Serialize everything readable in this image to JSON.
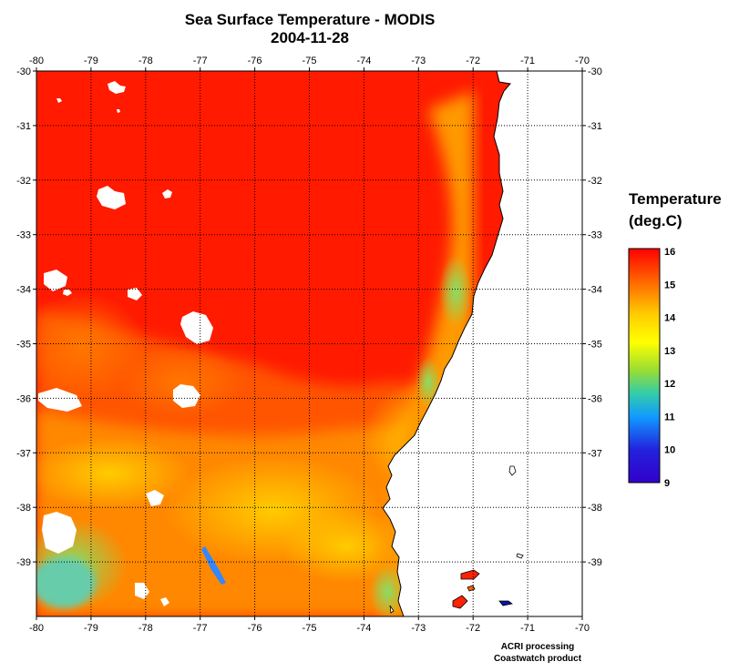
{
  "title": "Sea Surface Temperature - MODIS",
  "date": "2004-11-28",
  "credits": [
    "ACRI processing",
    "Coastwatch product"
  ],
  "legend": {
    "title_line1": "Temperature",
    "title_line2": "(deg.C)",
    "min": 9,
    "max": 16,
    "ticks": [
      "16",
      "15",
      "14",
      "13",
      "12",
      "11",
      "10",
      "9"
    ],
    "colors": [
      "#ff0000",
      "#ff6600",
      "#ffcc00",
      "#ffff00",
      "#99dd33",
      "#33ccaa",
      "#1199ff",
      "#2222dd",
      "#3300cc"
    ]
  },
  "map": {
    "lon_ticks": [
      "-80",
      "-79",
      "-78",
      "-77",
      "-76",
      "-75",
      "-74",
      "-73",
      "-72",
      "-71",
      "-70"
    ],
    "lat_ticks": [
      "-30",
      "-31",
      "-32",
      "-33",
      "-34",
      "-35",
      "-36",
      "-37",
      "-38",
      "-39"
    ],
    "lon_range": [
      -80,
      -70
    ],
    "lat_range": [
      -40,
      -30
    ],
    "grid": "dotted",
    "land_color": "#ffffff",
    "coast_color": "#000000"
  }
}
